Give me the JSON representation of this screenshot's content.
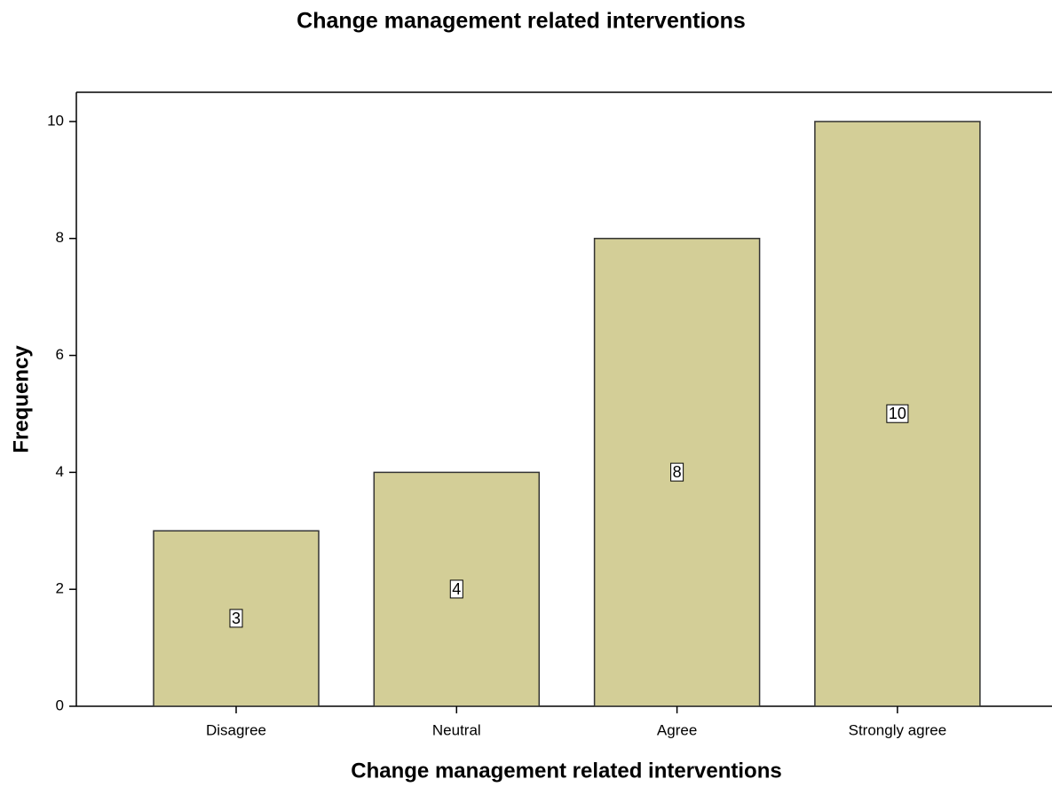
{
  "chart_data": {
    "type": "bar",
    "title": "Change management related interventions",
    "x_label": "Change management related interventions",
    "y_label": "Frequency",
    "categories": [
      "Disagree",
      "Neutral",
      "Agree",
      "Strongly agree"
    ],
    "values": [
      3,
      4,
      8,
      10
    ],
    "color": "#d3ce97",
    "ylim": [
      0,
      10.5
    ],
    "yticks": [
      0,
      2,
      4,
      6,
      8,
      10
    ],
    "grid": false
  }
}
